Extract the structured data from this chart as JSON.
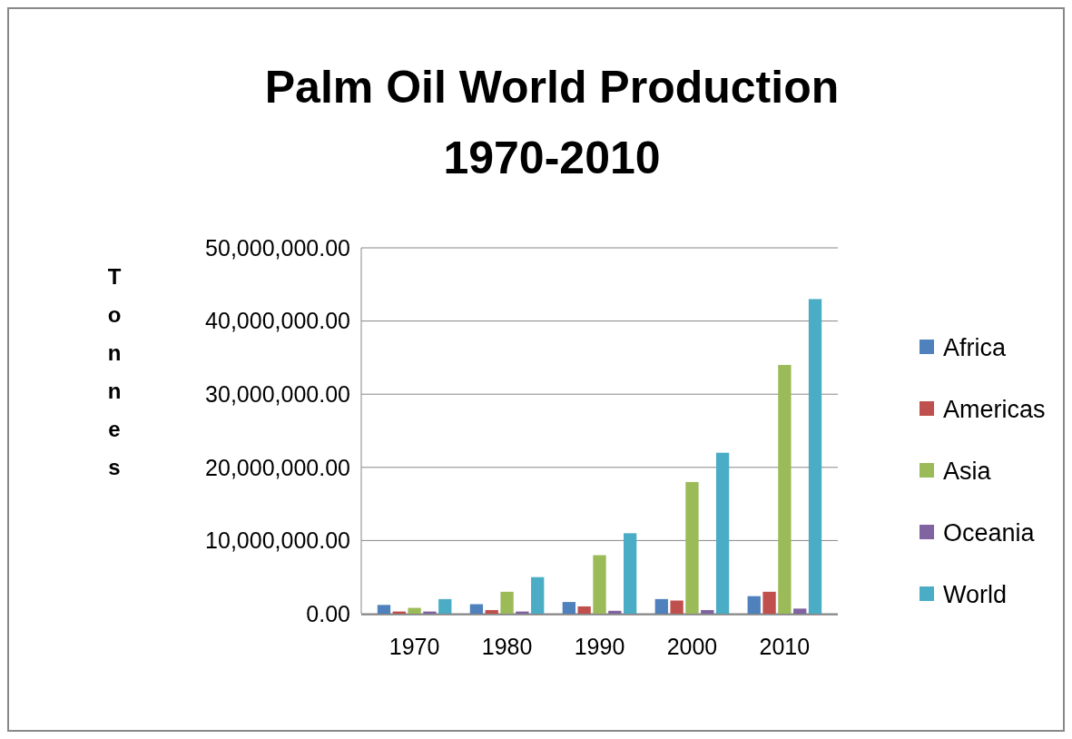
{
  "chart_data": {
    "type": "bar",
    "title": "Palm Oil World Production\n1970-2010",
    "ylabel": "Tonnes",
    "categories": [
      "1970",
      "1980",
      "1990",
      "2000",
      "2010"
    ],
    "series": [
      {
        "name": "Africa",
        "color": "#4f81bd",
        "values": [
          1200000,
          1300000,
          1600000,
          2000000,
          2400000
        ]
      },
      {
        "name": "Americas",
        "color": "#c0504d",
        "values": [
          300000,
          500000,
          1000000,
          1800000,
          3000000
        ]
      },
      {
        "name": "Asia",
        "color": "#9bbb59",
        "values": [
          800000,
          3000000,
          8000000,
          18000000,
          34000000
        ]
      },
      {
        "name": "Oceania",
        "color": "#8064a2",
        "values": [
          300000,
          300000,
          400000,
          500000,
          700000
        ]
      },
      {
        "name": "World",
        "color": "#4bacc6",
        "values": [
          2000000,
          5000000,
          11000000,
          22000000,
          43000000
        ]
      }
    ],
    "ylim": [
      0,
      50000000
    ],
    "yticks": [
      {
        "value": 0,
        "label": "0.00"
      },
      {
        "value": 10000000,
        "label": "10,000,000.00"
      },
      {
        "value": 20000000,
        "label": "20,000,000.00"
      },
      {
        "value": 30000000,
        "label": "30,000,000.00"
      },
      {
        "value": 40000000,
        "label": "40,000,000.00"
      },
      {
        "value": 50000000,
        "label": "50,000,000.00"
      }
    ],
    "grid": true,
    "legend": "right"
  }
}
